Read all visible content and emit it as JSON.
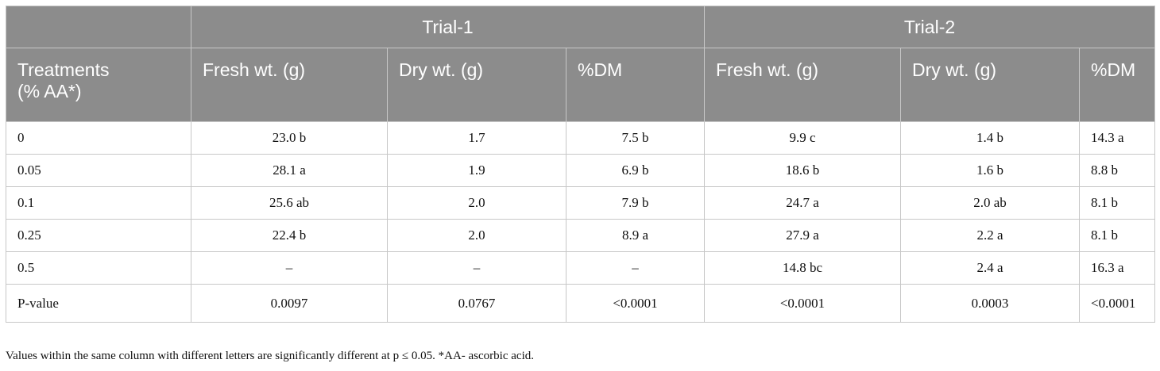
{
  "table": {
    "groups": [
      "Trial-1",
      "Trial-2"
    ],
    "treatments_label_line1": "Treatments",
    "treatments_label_line2": "(% AA*)",
    "columns": [
      "Fresh wt. (g)",
      "Dry wt. (g)",
      "%DM",
      "Fresh wt. (g)",
      "Dry wt. (g)",
      "%DM"
    ],
    "rows": [
      {
        "label": "0",
        "cells": [
          "23.0 b",
          "1.7",
          "7.5 b",
          "9.9 c",
          "1.4 b",
          "14.3 a"
        ]
      },
      {
        "label": "0.05",
        "cells": [
          "28.1 a",
          "1.9",
          "6.9 b",
          "18.6 b",
          "1.6 b",
          "8.8 b"
        ]
      },
      {
        "label": "0.1",
        "cells": [
          "25.6 ab",
          "2.0",
          "7.9 b",
          "24.7 a",
          "2.0 ab",
          "8.1 b"
        ]
      },
      {
        "label": "0.25",
        "cells": [
          "22.4 b",
          "2.0",
          "8.9 a",
          "27.9 a",
          "2.2 a",
          "8.1 b"
        ]
      },
      {
        "label": "0.5",
        "cells": [
          "–",
          "–",
          "–",
          "14.8 bc",
          "2.4 a",
          "16.3 a"
        ]
      },
      {
        "label": "P-value",
        "cells": [
          "0.0097",
          "0.0767",
          "<0.0001",
          "<0.0001",
          "0.0003",
          "<0.0001"
        ]
      }
    ]
  },
  "footnote": "Values within the same column with different letters are significantly different at p  ≤ 0.05. *AA- ascorbic acid."
}
